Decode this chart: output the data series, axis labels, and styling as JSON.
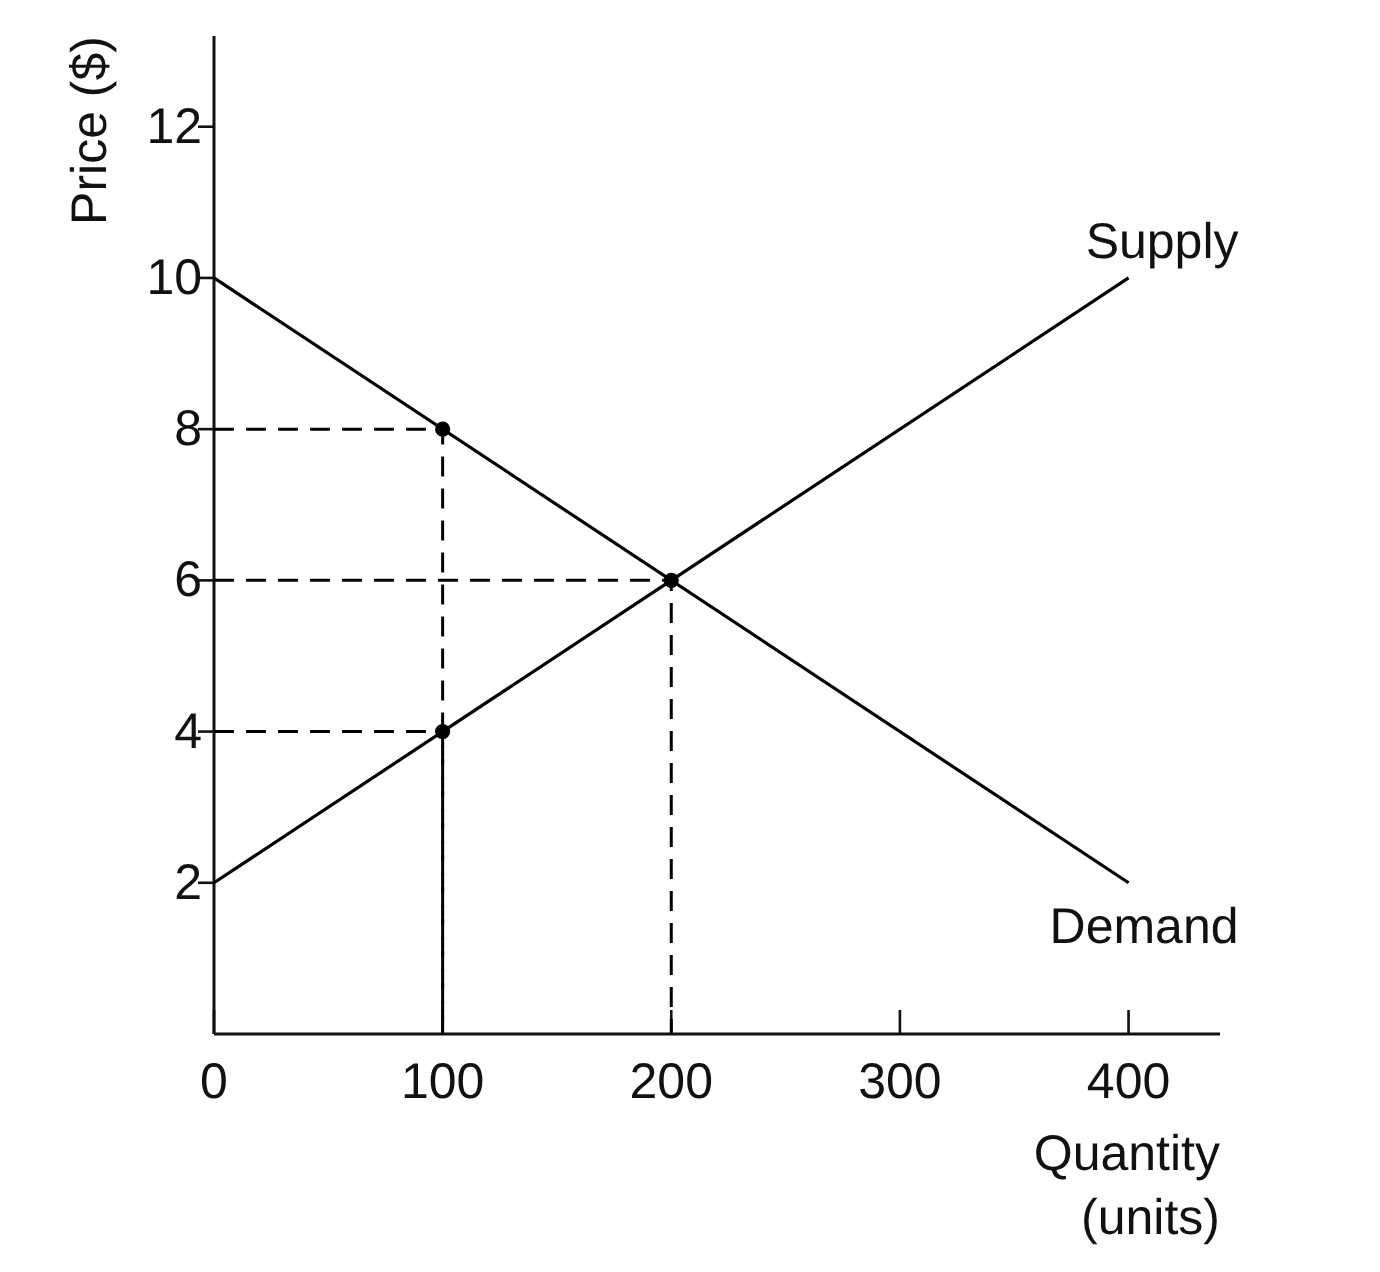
{
  "chart_data": {
    "type": "line",
    "xlabel": "Quantity (units)",
    "ylabel": "Price ($)",
    "xlim": [
      0,
      440
    ],
    "ylim": [
      0,
      13.2
    ],
    "xticks": [
      0,
      100,
      200,
      300,
      400
    ],
    "yticks": [
      2,
      4,
      6,
      8,
      10,
      12
    ],
    "grid": false,
    "series": [
      {
        "name": "Supply",
        "color": "#000000",
        "x": [
          0,
          400
        ],
        "values": [
          2,
          10
        ],
        "line_style": "solid"
      },
      {
        "name": "Demand",
        "color": "#000000",
        "x": [
          0,
          400
        ],
        "values": [
          10,
          2
        ],
        "line_style": "solid"
      },
      {
        "color": "#000000",
        "x": [
          0,
          100,
          100
        ],
        "values": [
          8,
          8,
          0
        ],
        "line_style": "dashed"
      },
      {
        "color": "#000000",
        "x": [
          0,
          100,
          100
        ],
        "values": [
          4,
          4,
          0
        ],
        "line_style": "dashed"
      },
      {
        "color": "#000000",
        "x": [
          0,
          200,
          200
        ],
        "values": [
          6,
          6,
          0
        ],
        "line_style": "dashed"
      },
      {
        "type": "scatter",
        "color": "#000000",
        "x": [
          100,
          100,
          200
        ],
        "values": [
          8,
          4,
          6
        ],
        "marker": "circle"
      }
    ]
  }
}
